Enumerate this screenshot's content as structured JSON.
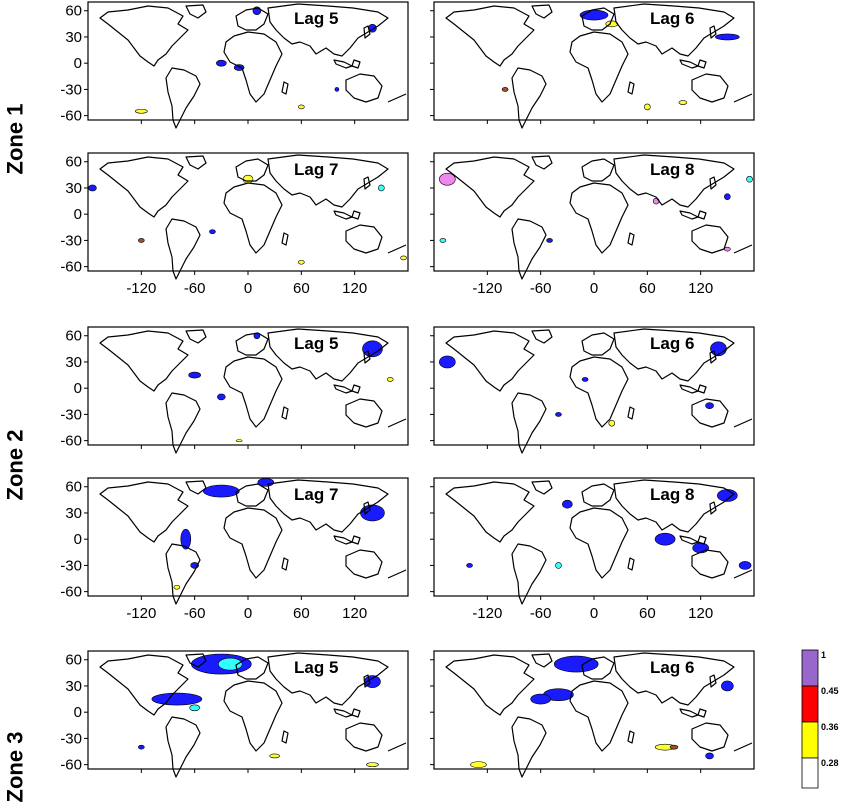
{
  "zones": [
    {
      "label": "Zone 1"
    },
    {
      "label": "Zone 2"
    },
    {
      "label": "Zone 3"
    }
  ],
  "chart_data": {
    "type": "heatmap",
    "x_ticks": [
      -120,
      -60,
      0,
      60,
      120
    ],
    "y_ticks": [
      60,
      30,
      0,
      -30,
      -60
    ],
    "xlim": [
      -180,
      180
    ],
    "ylim": [
      -65,
      70
    ],
    "panels": [
      {
        "zone": "Zone 1",
        "lag": "Lag 5",
        "row": 0,
        "col": 0
      },
      {
        "zone": "Zone 1",
        "lag": "Lag 6",
        "row": 0,
        "col": 1
      },
      {
        "zone": "Zone 1",
        "lag": "Lag 7",
        "row": 1,
        "col": 0
      },
      {
        "zone": "Zone 1",
        "lag": "Lag 8",
        "row": 1,
        "col": 1
      },
      {
        "zone": "Zone 2",
        "lag": "Lag 5",
        "row": 2,
        "col": 0
      },
      {
        "zone": "Zone 2",
        "lag": "Lag 6",
        "row": 2,
        "col": 1
      },
      {
        "zone": "Zone 2",
        "lag": "Lag 7",
        "row": 3,
        "col": 0
      },
      {
        "zone": "Zone 2",
        "lag": "Lag 8",
        "row": 3,
        "col": 1
      },
      {
        "zone": "Zone 3",
        "lag": "Lag 5",
        "row": 4,
        "col": 0
      },
      {
        "zone": "Zone 3",
        "lag": "Lag 6",
        "row": 4,
        "col": 1
      }
    ],
    "colorbar": {
      "levels": [
        "1",
        "0.45",
        "0.36",
        "0.28"
      ],
      "colors": [
        "#9966cc",
        "#ff0000",
        "#ffff00",
        "#ffffff"
      ]
    },
    "anomaly_colors": {
      "blue": "#1a1aff",
      "cyan": "#33ffff",
      "yellow": "#ffff33",
      "brown": "#a0522d",
      "pink": "#ee88ee"
    }
  }
}
